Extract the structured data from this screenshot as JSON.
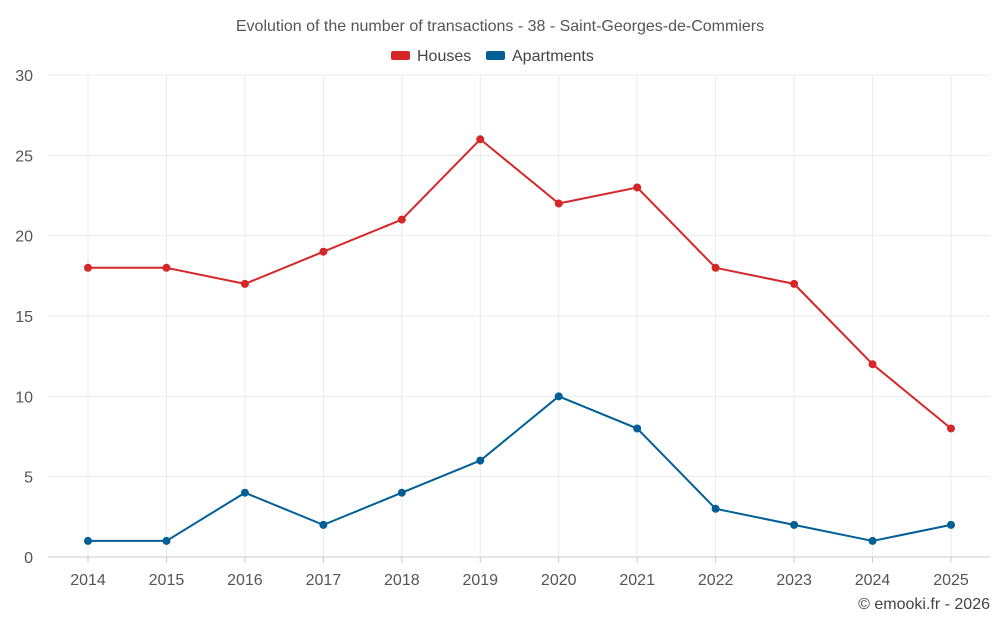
{
  "chart_data": {
    "type": "line",
    "title": "Evolution of the number of transactions - 38 - Saint-Georges-de-Commiers",
    "categories": [
      "2014",
      "2015",
      "2016",
      "2017",
      "2018",
      "2019",
      "2020",
      "2021",
      "2022",
      "2023",
      "2024",
      "2025"
    ],
    "series": [
      {
        "name": "Houses",
        "color": "#d62728",
        "values": [
          18,
          18,
          17,
          19,
          21,
          26,
          22,
          23,
          18,
          17,
          12,
          8
        ]
      },
      {
        "name": "Apartments",
        "color": "#005f96",
        "values": [
          1,
          1,
          4,
          2,
          4,
          6,
          10,
          8,
          3,
          2,
          1,
          2
        ]
      }
    ],
    "xlabel": "",
    "ylabel": "",
    "ylim": [
      0,
      30
    ],
    "yticks": [
      "0",
      "5",
      "10",
      "15",
      "20",
      "25",
      "30"
    ],
    "grid": true,
    "legend_position": "top-center"
  },
  "credit": "© emooki.fr - 2026"
}
